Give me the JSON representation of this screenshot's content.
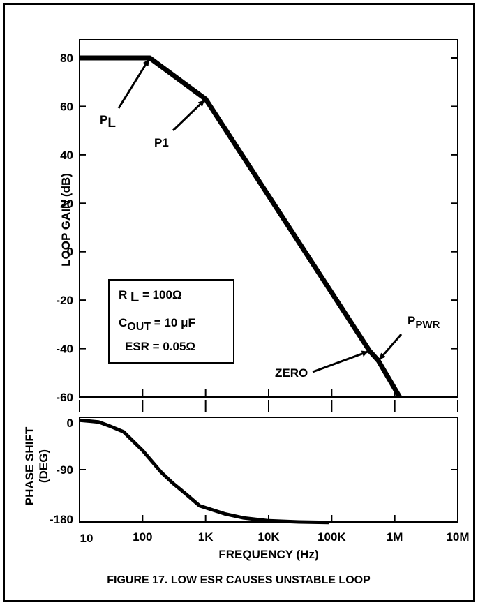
{
  "chart_data": [
    {
      "type": "line",
      "title": "",
      "xlabel": "",
      "ylabel": "LOOP GAIN (dB)",
      "x_scale": "log",
      "xlim": [
        10,
        10000000
      ],
      "ylim": [
        -60,
        80
      ],
      "y_ticks": [
        "80",
        "60",
        "40",
        "20",
        "0",
        "-20",
        "-40",
        "-60"
      ],
      "grid": false,
      "series": [
        {
          "x": [
            10,
            130,
            1000,
            400000,
            550000,
            1200000
          ],
          "y": [
            80,
            80,
            63,
            -41,
            -45,
            -60
          ]
        }
      ],
      "annotations": [
        {
          "label": "P",
          "sub": "L",
          "target_x": 130,
          "target_y": 80
        },
        {
          "label": "P1",
          "sub": "",
          "target_x": 1000,
          "target_y": 63
        },
        {
          "label": "ZERO",
          "sub": "",
          "target_x": 400000,
          "target_y": -41
        },
        {
          "label": "P",
          "sub": "PWR",
          "target_x": 550000,
          "target_y": -45
        }
      ],
      "legend_box": {
        "line1": [
          "R ",
          "L",
          " = 100Ω"
        ],
        "line2": [
          "C",
          "OUT",
          " = 10 μF"
        ],
        "line3": "ESR = 0.05Ω"
      }
    },
    {
      "type": "line",
      "xlabel": "FREQUENCY (Hz)",
      "ylabel_line1": "PHASE SHIFT",
      "ylabel_line2": "(DEG)",
      "x_scale": "log",
      "xlim": [
        10,
        10000000
      ],
      "ylim": [
        -180,
        0
      ],
      "y_ticks": [
        "0",
        "-90",
        "-180"
      ],
      "x_ticks": [
        "10",
        "100",
        "1K",
        "10K",
        "100K",
        "1M",
        "10M"
      ],
      "grid": false,
      "series": [
        {
          "x": [
            10,
            20,
            30,
            50,
            100,
            200,
            300,
            500,
            800,
            2000,
            4000,
            10000,
            30000,
            90000
          ],
          "y": [
            -5,
            -8,
            -15,
            -25,
            -57,
            -95,
            -113,
            -133,
            -152,
            -166,
            -173,
            -178,
            -180,
            -181
          ]
        }
      ]
    }
  ],
  "caption": "FIGURE 17.  LOW ESR CAUSES UNSTABLE LOOP"
}
